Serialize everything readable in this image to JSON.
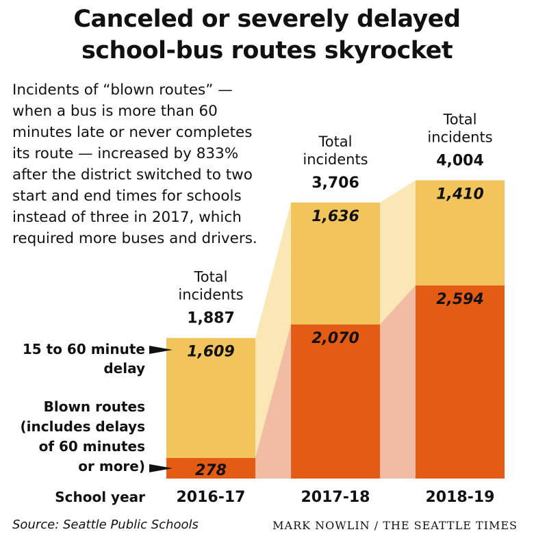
{
  "title_line1": "Canceled or severely delayed",
  "title_line2": "school-bus routes skyrocket",
  "subtitle_lines": [
    "Incidents of “blown routes” —",
    "when a bus is more than 60",
    "minutes late or never completes",
    "its route — increased by 833%",
    "after the district switched to two",
    "start and end times for schools",
    "instead of three in 2017, which",
    "required more buses and drivers."
  ],
  "source": "Source: Seattle Public Schools",
  "credit": "MARK NOWLIN / THE SEATTLE TIMES",
  "colors": {
    "blown": "#e45b14",
    "delay": "#f1c45c",
    "blown_connector": "#f2bca4",
    "delay_connector": "#fae7b5"
  },
  "chart_data": {
    "type": "bar",
    "stacked": true,
    "categories": [
      "2016-17",
      "2017-18",
      "2018-19"
    ],
    "xlabel": "School year",
    "series": [
      {
        "name": "Blown routes (includes delays of 60 minutes or more)",
        "name_lines": [
          "Blown routes",
          "(includes delays",
          "of 60 minutes",
          "or more)"
        ],
        "values": [
          278,
          2070,
          2594
        ],
        "labels": [
          "278",
          "2,070",
          "2,594"
        ]
      },
      {
        "name": "15 to 60 minute delay",
        "name_lines": [
          "15 to 60 minute",
          "delay"
        ],
        "values": [
          1609,
          1636,
          1410
        ],
        "labels": [
          "1,609",
          "1,636",
          "1,410"
        ]
      }
    ],
    "totals_heading": [
      "Total",
      "incidents"
    ],
    "totals": [
      1887,
      3706,
      4004
    ],
    "total_labels": [
      "1,887",
      "3,706",
      "4,004"
    ]
  }
}
